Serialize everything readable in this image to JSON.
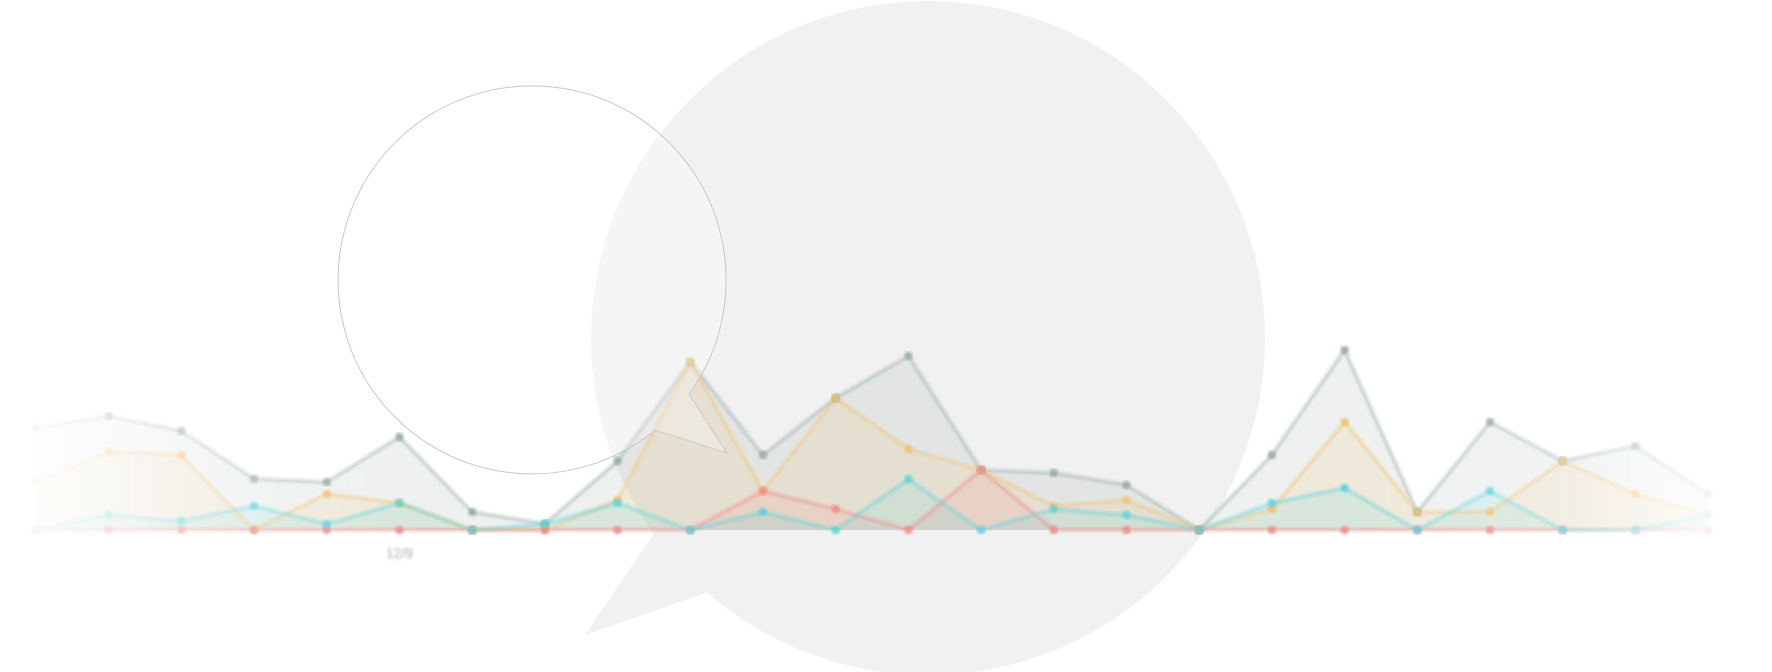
{
  "chart_data": {
    "type": "area",
    "title": "",
    "xlabel": "",
    "ylabel": "",
    "x_tick_labels_visible": [
      {
        "index": 5,
        "label": "12/9"
      }
    ],
    "ylim": [
      0,
      60
    ],
    "grid": false,
    "legend": "none",
    "x": [
      0,
      1,
      2,
      3,
      4,
      5,
      6,
      7,
      8,
      9,
      10,
      11,
      12,
      13,
      14,
      15,
      16,
      17,
      18,
      19,
      20,
      21,
      22,
      23
    ],
    "series": [
      {
        "name": "gray",
        "color": "#95aaa4",
        "values": [
          34,
          38,
          33,
          17,
          16,
          31,
          6,
          2,
          23,
          56,
          25,
          44,
          58,
          20,
          19,
          15,
          0,
          25,
          60,
          6,
          36,
          23,
          28,
          12
        ]
      },
      {
        "name": "amber",
        "color": "#f0c070",
        "values": [
          16,
          26,
          25,
          0,
          12,
          9,
          0,
          0,
          10,
          56,
          13,
          44,
          27,
          20,
          8,
          10,
          0,
          7,
          36,
          6,
          6,
          23,
          12,
          5
        ]
      },
      {
        "name": "red",
        "color": "#f08a8a",
        "values": [
          0,
          0,
          0,
          0,
          0,
          0,
          0,
          0,
          0,
          0,
          13,
          7,
          0,
          20,
          0,
          0,
          0,
          0,
          0,
          0,
          0,
          0,
          0,
          0
        ]
      },
      {
        "name": "teal",
        "color": "#5ed3dc",
        "values": [
          0,
          5,
          3,
          8,
          2,
          9,
          0,
          2,
          9,
          0,
          6,
          0,
          17,
          0,
          7,
          5,
          0,
          9,
          14,
          0,
          13,
          0,
          0,
          5
        ]
      }
    ]
  }
}
